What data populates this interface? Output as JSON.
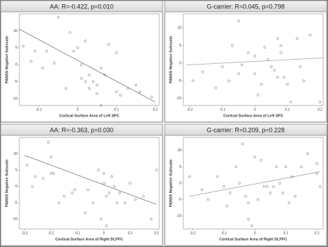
{
  "chart_data": [
    {
      "type": "scatter",
      "title": "AA: R=-0.422, p=0.010",
      "x_label": "Cortical Surface Area of Left SPC",
      "y_label": "PANSS Negative Subscale",
      "x": [
        -0.14,
        -0.12,
        -0.11,
        -0.09,
        -0.08,
        -0.06,
        -0.05,
        -0.03,
        -0.02,
        -0.01,
        0,
        0.01,
        0.01,
        0.02,
        0.02,
        0.03,
        0.03,
        0.04,
        0.05,
        0.06,
        0.07,
        0.08,
        0.1,
        0.1,
        0.11,
        0.13,
        0.15,
        0.16,
        0.19,
        0.05,
        0.06
      ],
      "values": [
        5.5,
        1,
        4,
        -1,
        4,
        0.5,
        14,
        -7,
        9.5,
        4,
        5,
        0,
        -4,
        7,
        -5,
        -7,
        -3,
        -5,
        -6,
        -1,
        -3,
        6,
        3.5,
        -8,
        -9,
        -7,
        -6,
        -8,
        -9.5,
        -8.5,
        -12
      ],
      "trendline": {
        "x": [
          -0.15,
          0.2
        ],
        "y": [
          10.5,
          -11
        ]
      },
      "xlim": [
        -0.15,
        0.21
      ],
      "ylim": [
        -12,
        15
      ],
      "xticks": [
        -0.1,
        0,
        0.1,
        0.2
      ],
      "yticks": [
        -10,
        -5,
        0,
        5,
        10
      ],
      "color": "#666666",
      "line_color": "#777777"
    },
    {
      "type": "scatter",
      "title": "G-carrier: R=0.045, p=0.798",
      "x_label": "Cortical Surface Area of Left SPC",
      "y_label": "PANSS Negative Subscale",
      "x": [
        -0.19,
        -0.16,
        -0.12,
        -0.1,
        -0.08,
        -0.07,
        -0.05,
        -0.05,
        -0.04,
        -0.02,
        0,
        0,
        0.01,
        0.02,
        0.03,
        0.04,
        0.05,
        0.06,
        0.07,
        0.07,
        0.08,
        0.08,
        0.09,
        0.1,
        0.11,
        0.13,
        0.14,
        0.15,
        0.17,
        0.2
      ],
      "values": [
        -5,
        -2.5,
        -7,
        -1,
        -5,
        5,
        12,
        -3,
        -0.5,
        3,
        2,
        -3,
        -9,
        -6,
        4.5,
        1,
        -1,
        -2,
        -4,
        7,
        5,
        3,
        -4,
        -6,
        -11,
        7,
        -1,
        -5,
        8,
        -11
      ],
      "trendline": {
        "x": [
          -0.21,
          0.21
        ],
        "y": [
          -0.5,
          1.5
        ]
      },
      "xlim": [
        -0.22,
        0.21
      ],
      "ylim": [
        -12,
        14
      ],
      "xticks": [
        -0.2,
        -0.1,
        0,
        0.1,
        0.2
      ],
      "yticks": [
        -10,
        -5,
        0,
        5,
        10
      ],
      "color": "#666666",
      "line_color": "#aaaaaa"
    },
    {
      "type": "scatter",
      "title": "AA: R=-0.363, p=0.030",
      "x_label": "Cortical Surface Area of Right DLPFC",
      "y_label": "PANSS Negative Subscale",
      "x": [
        -0.29,
        -0.27,
        -0.26,
        -0.23,
        -0.21,
        -0.2,
        -0.2,
        -0.19,
        -0.17,
        -0.15,
        -0.12,
        -0.11,
        -0.07,
        -0.06,
        -0.04,
        -0.02,
        0,
        0,
        0.01,
        0.02,
        0.03,
        0.04,
        0.05,
        0.06,
        0.08,
        0.1,
        0.12,
        0.15,
        0.18,
        0.2,
        -0.01,
        0.01
      ],
      "values": [
        6.5,
        0,
        3,
        2.5,
        13.5,
        4,
        9,
        4,
        -5,
        -3,
        -2,
        -1,
        -8,
        -1,
        -5,
        5,
        4,
        1,
        -3,
        -2,
        3,
        0,
        -5,
        -2,
        -5,
        1,
        -4,
        -3,
        -10,
        5,
        -10,
        -12
      ],
      "trendline": {
        "x": [
          -0.3,
          0.2
        ],
        "y": [
          9.5,
          -5.5
        ]
      },
      "xlim": [
        -0.32,
        0.21
      ],
      "ylim": [
        -13,
        15
      ],
      "xticks": [
        -0.3,
        -0.2,
        -0.1,
        0,
        0.1,
        0.2
      ],
      "yticks": [
        -10,
        -5,
        0,
        5,
        10
      ],
      "color": "#666666",
      "line_color": "#777777"
    },
    {
      "type": "scatter",
      "title": "G-carrier: R=0.209, p=0.228",
      "x_label": "Cortical Surface Area of Right DLPFC",
      "y_label": "PANSS Negative Subscale",
      "x": [
        -0.21,
        -0.17,
        -0.15,
        -0.12,
        -0.1,
        -0.09,
        -0.08,
        -0.06,
        -0.05,
        -0.04,
        -0.03,
        -0.02,
        -0.02,
        -0.01,
        0,
        0.01,
        0.02,
        0.03,
        0.04,
        0.05,
        0.06,
        0.07,
        0.08,
        0.09,
        0.1,
        0.11,
        0.12,
        0.13,
        0.15,
        0.17,
        0.2,
        0.2,
        0.21
      ],
      "values": [
        2,
        -2,
        -5,
        2,
        -1,
        -7,
        -3,
        5,
        0,
        12,
        -4,
        -6,
        -11,
        -13,
        8,
        -5,
        7,
        -1,
        -1,
        -3,
        -1,
        5,
        0,
        -3,
        5,
        -6,
        2,
        -4,
        5,
        9,
        6,
        3,
        -1
      ],
      "trendline": {
        "x": [
          -0.21,
          0.21
        ],
        "y": [
          -4,
          3.5
        ]
      },
      "xlim": [
        -0.23,
        0.22
      ],
      "ylim": [
        -14,
        14
      ],
      "xticks": [
        -0.2,
        -0.1,
        0,
        0.1,
        0.2
      ],
      "yticks": [
        -10,
        -5,
        0,
        5,
        10
      ],
      "color": "#666666",
      "line_color": "#999999"
    }
  ]
}
